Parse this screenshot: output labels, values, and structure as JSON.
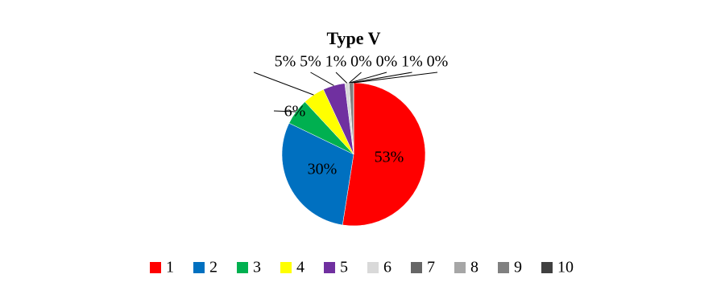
{
  "chart_data": {
    "type": "pie",
    "title": "Type V",
    "categories": [
      "1",
      "2",
      "3",
      "4",
      "5",
      "6",
      "7",
      "8",
      "9",
      "10"
    ],
    "values": [
      53,
      30,
      6,
      5,
      5,
      1,
      0,
      0,
      1,
      0
    ],
    "value_labels": [
      "53%",
      "30%",
      "6%",
      "5%",
      "5%",
      "1%",
      "0%",
      "0%",
      "1%",
      "0%"
    ],
    "colors": [
      "#ff0000",
      "#0070c0",
      "#00b050",
      "#ffff00",
      "#7030a0",
      "#d9d9d9",
      "#666666",
      "#a6a6a6",
      "#808080",
      "#404040"
    ],
    "legend": "bottom"
  }
}
